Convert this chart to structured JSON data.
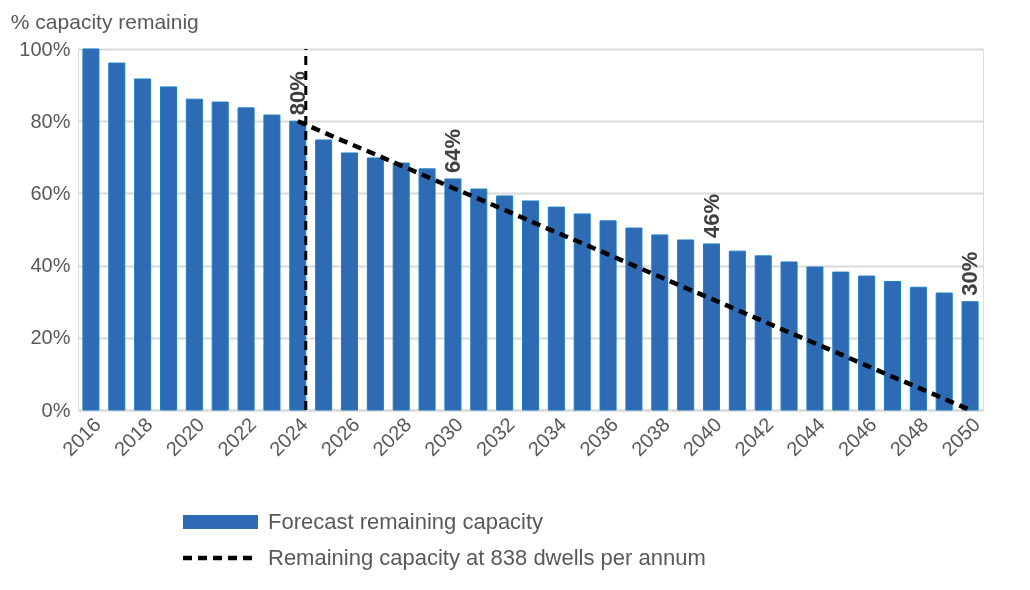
{
  "chart_data": {
    "type": "bar",
    "title": "% capacity remainig",
    "categories": [
      "2016",
      null,
      "2018",
      null,
      "2020",
      null,
      "2022",
      null,
      "2024",
      null,
      "2026",
      null,
      "2028",
      null,
      "2030",
      null,
      "2032",
      null,
      "2034",
      null,
      "2036",
      null,
      "2038",
      null,
      "2040",
      null,
      "2042",
      null,
      "2044",
      null,
      "2046",
      null,
      "2048",
      null,
      "2050"
    ],
    "series": [
      {
        "name": "Forecast remaining capacity",
        "color": "#2e6bb4",
        "values": [
          100,
          96.1,
          91.7,
          89.5,
          86.1,
          85.3,
          83.7,
          81.7,
          80,
          74.8,
          71.2,
          69.8,
          68.4,
          66.8,
          64,
          61.2,
          59.3,
          57.9,
          56.2,
          54.3,
          52.4,
          50.4,
          48.5,
          47.1,
          46,
          44,
          42.7,
          41,
          39.6,
          38.2,
          37.1,
          35.6,
          34,
          32.4,
          30
        ],
        "value_labels": [
          null,
          null,
          null,
          null,
          null,
          null,
          null,
          null,
          "80%",
          null,
          null,
          null,
          null,
          null,
          "64%",
          null,
          null,
          null,
          null,
          null,
          null,
          null,
          null,
          null,
          "46%",
          null,
          null,
          null,
          null,
          null,
          null,
          null,
          null,
          null,
          "30%"
        ]
      },
      {
        "name": "Remaining capacity at 838 dwells per annum",
        "type": "line",
        "color": "#000000",
        "line_style": "dashed",
        "values": [
          null,
          null,
          null,
          null,
          null,
          null,
          null,
          null,
          80,
          76.9,
          73.8,
          70.8,
          67.7,
          64.6,
          61.5,
          58.5,
          55.4,
          52.3,
          49.2,
          46.2,
          43.1,
          40,
          36.9,
          33.8,
          30.8,
          27.7,
          24.6,
          21.5,
          18.5,
          15.4,
          12.3,
          9.2,
          6.2,
          3.1,
          0
        ]
      }
    ],
    "ylim": [
      0,
      100
    ],
    "yticks": [
      {
        "value": 0,
        "label": "0%"
      },
      {
        "value": 20,
        "label": "20%"
      },
      {
        "value": 40,
        "label": "40%"
      },
      {
        "value": 60,
        "label": "60%"
      },
      {
        "value": 80,
        "label": "80%"
      },
      {
        "value": 100,
        "label": "100%"
      }
    ],
    "ref_lines": [
      {
        "axis": "x",
        "value": "2024",
        "color": "#000000",
        "line_style": "dashed"
      }
    ],
    "grid": "y",
    "legend": "bottom"
  }
}
